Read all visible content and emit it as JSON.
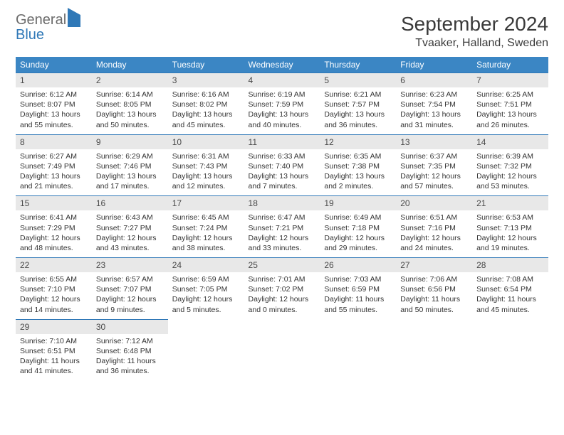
{
  "logo": {
    "word1": "General",
    "word2": "Blue"
  },
  "title": "September 2024",
  "location": "Tvaaker, Halland, Sweden",
  "colors": {
    "header_bg": "#3b86c4",
    "header_text": "#ffffff",
    "daynum_bg": "#e8e8e8",
    "day_border": "#2f78b7",
    "logo_gray": "#6b6b6b",
    "logo_blue": "#2f78b7"
  },
  "day_names": [
    "Sunday",
    "Monday",
    "Tuesday",
    "Wednesday",
    "Thursday",
    "Friday",
    "Saturday"
  ],
  "start_offset": 0,
  "days": [
    {
      "n": 1,
      "sunrise": "6:12 AM",
      "sunset": "8:07 PM",
      "daylight": "13 hours and 55 minutes."
    },
    {
      "n": 2,
      "sunrise": "6:14 AM",
      "sunset": "8:05 PM",
      "daylight": "13 hours and 50 minutes."
    },
    {
      "n": 3,
      "sunrise": "6:16 AM",
      "sunset": "8:02 PM",
      "daylight": "13 hours and 45 minutes."
    },
    {
      "n": 4,
      "sunrise": "6:19 AM",
      "sunset": "7:59 PM",
      "daylight": "13 hours and 40 minutes."
    },
    {
      "n": 5,
      "sunrise": "6:21 AM",
      "sunset": "7:57 PM",
      "daylight": "13 hours and 36 minutes."
    },
    {
      "n": 6,
      "sunrise": "6:23 AM",
      "sunset": "7:54 PM",
      "daylight": "13 hours and 31 minutes."
    },
    {
      "n": 7,
      "sunrise": "6:25 AM",
      "sunset": "7:51 PM",
      "daylight": "13 hours and 26 minutes."
    },
    {
      "n": 8,
      "sunrise": "6:27 AM",
      "sunset": "7:49 PM",
      "daylight": "13 hours and 21 minutes."
    },
    {
      "n": 9,
      "sunrise": "6:29 AM",
      "sunset": "7:46 PM",
      "daylight": "13 hours and 17 minutes."
    },
    {
      "n": 10,
      "sunrise": "6:31 AM",
      "sunset": "7:43 PM",
      "daylight": "13 hours and 12 minutes."
    },
    {
      "n": 11,
      "sunrise": "6:33 AM",
      "sunset": "7:40 PM",
      "daylight": "13 hours and 7 minutes."
    },
    {
      "n": 12,
      "sunrise": "6:35 AM",
      "sunset": "7:38 PM",
      "daylight": "13 hours and 2 minutes."
    },
    {
      "n": 13,
      "sunrise": "6:37 AM",
      "sunset": "7:35 PM",
      "daylight": "12 hours and 57 minutes."
    },
    {
      "n": 14,
      "sunrise": "6:39 AM",
      "sunset": "7:32 PM",
      "daylight": "12 hours and 53 minutes."
    },
    {
      "n": 15,
      "sunrise": "6:41 AM",
      "sunset": "7:29 PM",
      "daylight": "12 hours and 48 minutes."
    },
    {
      "n": 16,
      "sunrise": "6:43 AM",
      "sunset": "7:27 PM",
      "daylight": "12 hours and 43 minutes."
    },
    {
      "n": 17,
      "sunrise": "6:45 AM",
      "sunset": "7:24 PM",
      "daylight": "12 hours and 38 minutes."
    },
    {
      "n": 18,
      "sunrise": "6:47 AM",
      "sunset": "7:21 PM",
      "daylight": "12 hours and 33 minutes."
    },
    {
      "n": 19,
      "sunrise": "6:49 AM",
      "sunset": "7:18 PM",
      "daylight": "12 hours and 29 minutes."
    },
    {
      "n": 20,
      "sunrise": "6:51 AM",
      "sunset": "7:16 PM",
      "daylight": "12 hours and 24 minutes."
    },
    {
      "n": 21,
      "sunrise": "6:53 AM",
      "sunset": "7:13 PM",
      "daylight": "12 hours and 19 minutes."
    },
    {
      "n": 22,
      "sunrise": "6:55 AM",
      "sunset": "7:10 PM",
      "daylight": "12 hours and 14 minutes."
    },
    {
      "n": 23,
      "sunrise": "6:57 AM",
      "sunset": "7:07 PM",
      "daylight": "12 hours and 9 minutes."
    },
    {
      "n": 24,
      "sunrise": "6:59 AM",
      "sunset": "7:05 PM",
      "daylight": "12 hours and 5 minutes."
    },
    {
      "n": 25,
      "sunrise": "7:01 AM",
      "sunset": "7:02 PM",
      "daylight": "12 hours and 0 minutes."
    },
    {
      "n": 26,
      "sunrise": "7:03 AM",
      "sunset": "6:59 PM",
      "daylight": "11 hours and 55 minutes."
    },
    {
      "n": 27,
      "sunrise": "7:06 AM",
      "sunset": "6:56 PM",
      "daylight": "11 hours and 50 minutes."
    },
    {
      "n": 28,
      "sunrise": "7:08 AM",
      "sunset": "6:54 PM",
      "daylight": "11 hours and 45 minutes."
    },
    {
      "n": 29,
      "sunrise": "7:10 AM",
      "sunset": "6:51 PM",
      "daylight": "11 hours and 41 minutes."
    },
    {
      "n": 30,
      "sunrise": "7:12 AM",
      "sunset": "6:48 PM",
      "daylight": "11 hours and 36 minutes."
    }
  ],
  "labels": {
    "sunrise": "Sunrise:",
    "sunset": "Sunset:",
    "daylight": "Daylight:"
  }
}
